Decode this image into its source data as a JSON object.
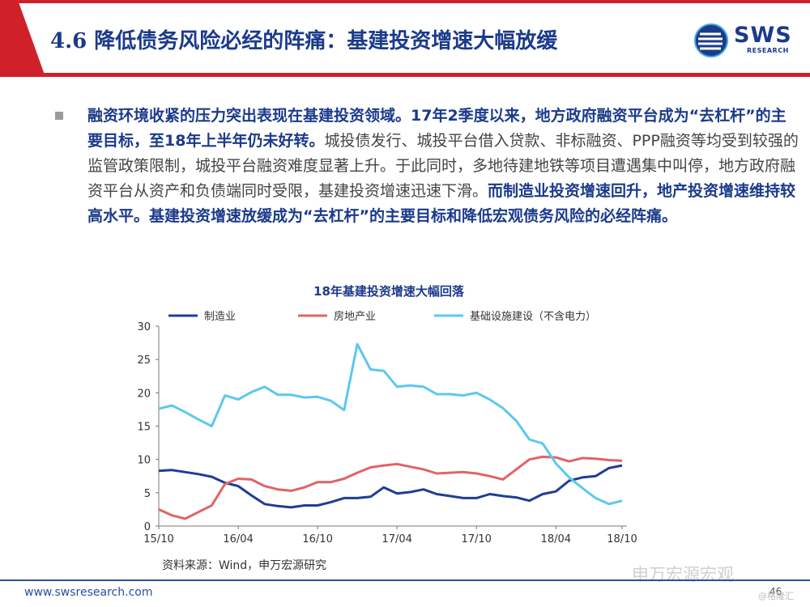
{
  "header": {
    "title": "4.6 降低债务风险必经的阵痛：基建投资增速大幅放缓",
    "logo_text": "SWS",
    "logo_sub": "RESEARCH"
  },
  "body": {
    "paragraph_parts": [
      {
        "text": "融资环境收紧的压力突出表现在基建投资领域。17年2季度以来，地方政府融资平台成为“去杠杆”的主要目标，至18年上半年仍未好转。",
        "bold": true
      },
      {
        "text": "城投债发行、城投平台借入贷款、非标融资、PPP融资等均受到较强的监管政策限制，城投平台融资难度显著上升。于此同时，多地待建地铁等项目遭遇集中叫停，地方政府融资平台从资产和负债端同时受限，基建投资增速迅速下滑。",
        "bold": false
      },
      {
        "text": "而制造业投资增速回升，地产投资增速维持较高水平。基建投资增速放缓成为“去杠杆”的主要目标和降低宏观债务风险的必经阵痛。",
        "bold": true
      }
    ]
  },
  "chart_data": {
    "type": "line",
    "title": "18年基建投资增速大幅回落",
    "x_ticks": [
      "15/10",
      "16/04",
      "16/10",
      "17/04",
      "17/10",
      "18/04",
      "18/10"
    ],
    "ylim": [
      0,
      30
    ],
    "y_ticks": [
      "0",
      "5",
      "10",
      "15",
      "20",
      "25",
      "30"
    ],
    "legend_position": "top",
    "source": "资料来源：Wind，申万宏源研究",
    "series": [
      {
        "name": "制造业",
        "color": "#1f3d96",
        "values": [
          8.3,
          8.4,
          8.1,
          7.8,
          7.4,
          6.5,
          6.0,
          4.6,
          3.3,
          3.0,
          2.8,
          3.1,
          3.1,
          3.6,
          4.2,
          4.2,
          4.4,
          5.8,
          4.9,
          5.1,
          5.5,
          4.8,
          4.5,
          4.2,
          4.2,
          4.8,
          4.5,
          4.3,
          3.8,
          4.8,
          5.2,
          6.8,
          7.3,
          7.5,
          8.7,
          9.1
        ]
      },
      {
        "name": "房地产业",
        "color": "#e06466",
        "values": [
          2.5,
          1.6,
          1.1,
          2.1,
          3.1,
          6.3,
          7.1,
          7.0,
          6.0,
          5.5,
          5.3,
          5.8,
          6.6,
          6.6,
          7.1,
          8.0,
          8.8,
          9.1,
          9.3,
          8.9,
          8.5,
          7.9,
          8.0,
          8.1,
          7.9,
          7.5,
          7.0,
          8.5,
          10.0,
          10.4,
          10.3,
          9.7,
          10.2,
          10.1,
          9.9,
          9.8
        ]
      },
      {
        "name": "基础设施建设（不含电力）",
        "color": "#5cc8ee",
        "values": [
          17.6,
          18.1,
          17.1,
          16.0,
          15.0,
          19.6,
          19.0,
          20.1,
          20.9,
          19.7,
          19.7,
          19.3,
          19.4,
          18.8,
          17.4,
          27.3,
          23.5,
          23.3,
          20.9,
          21.1,
          20.9,
          19.8,
          19.8,
          19.6,
          20.0,
          19.0,
          17.7,
          15.8,
          13.0,
          12.4,
          9.4,
          7.3,
          5.7,
          4.2,
          3.3,
          3.8
        ]
      }
    ]
  },
  "footer": {
    "url": "www.swsresearch.com",
    "page": "46",
    "watermark": "申万宏源宏观",
    "watermark_sub": "@格隆汇"
  }
}
